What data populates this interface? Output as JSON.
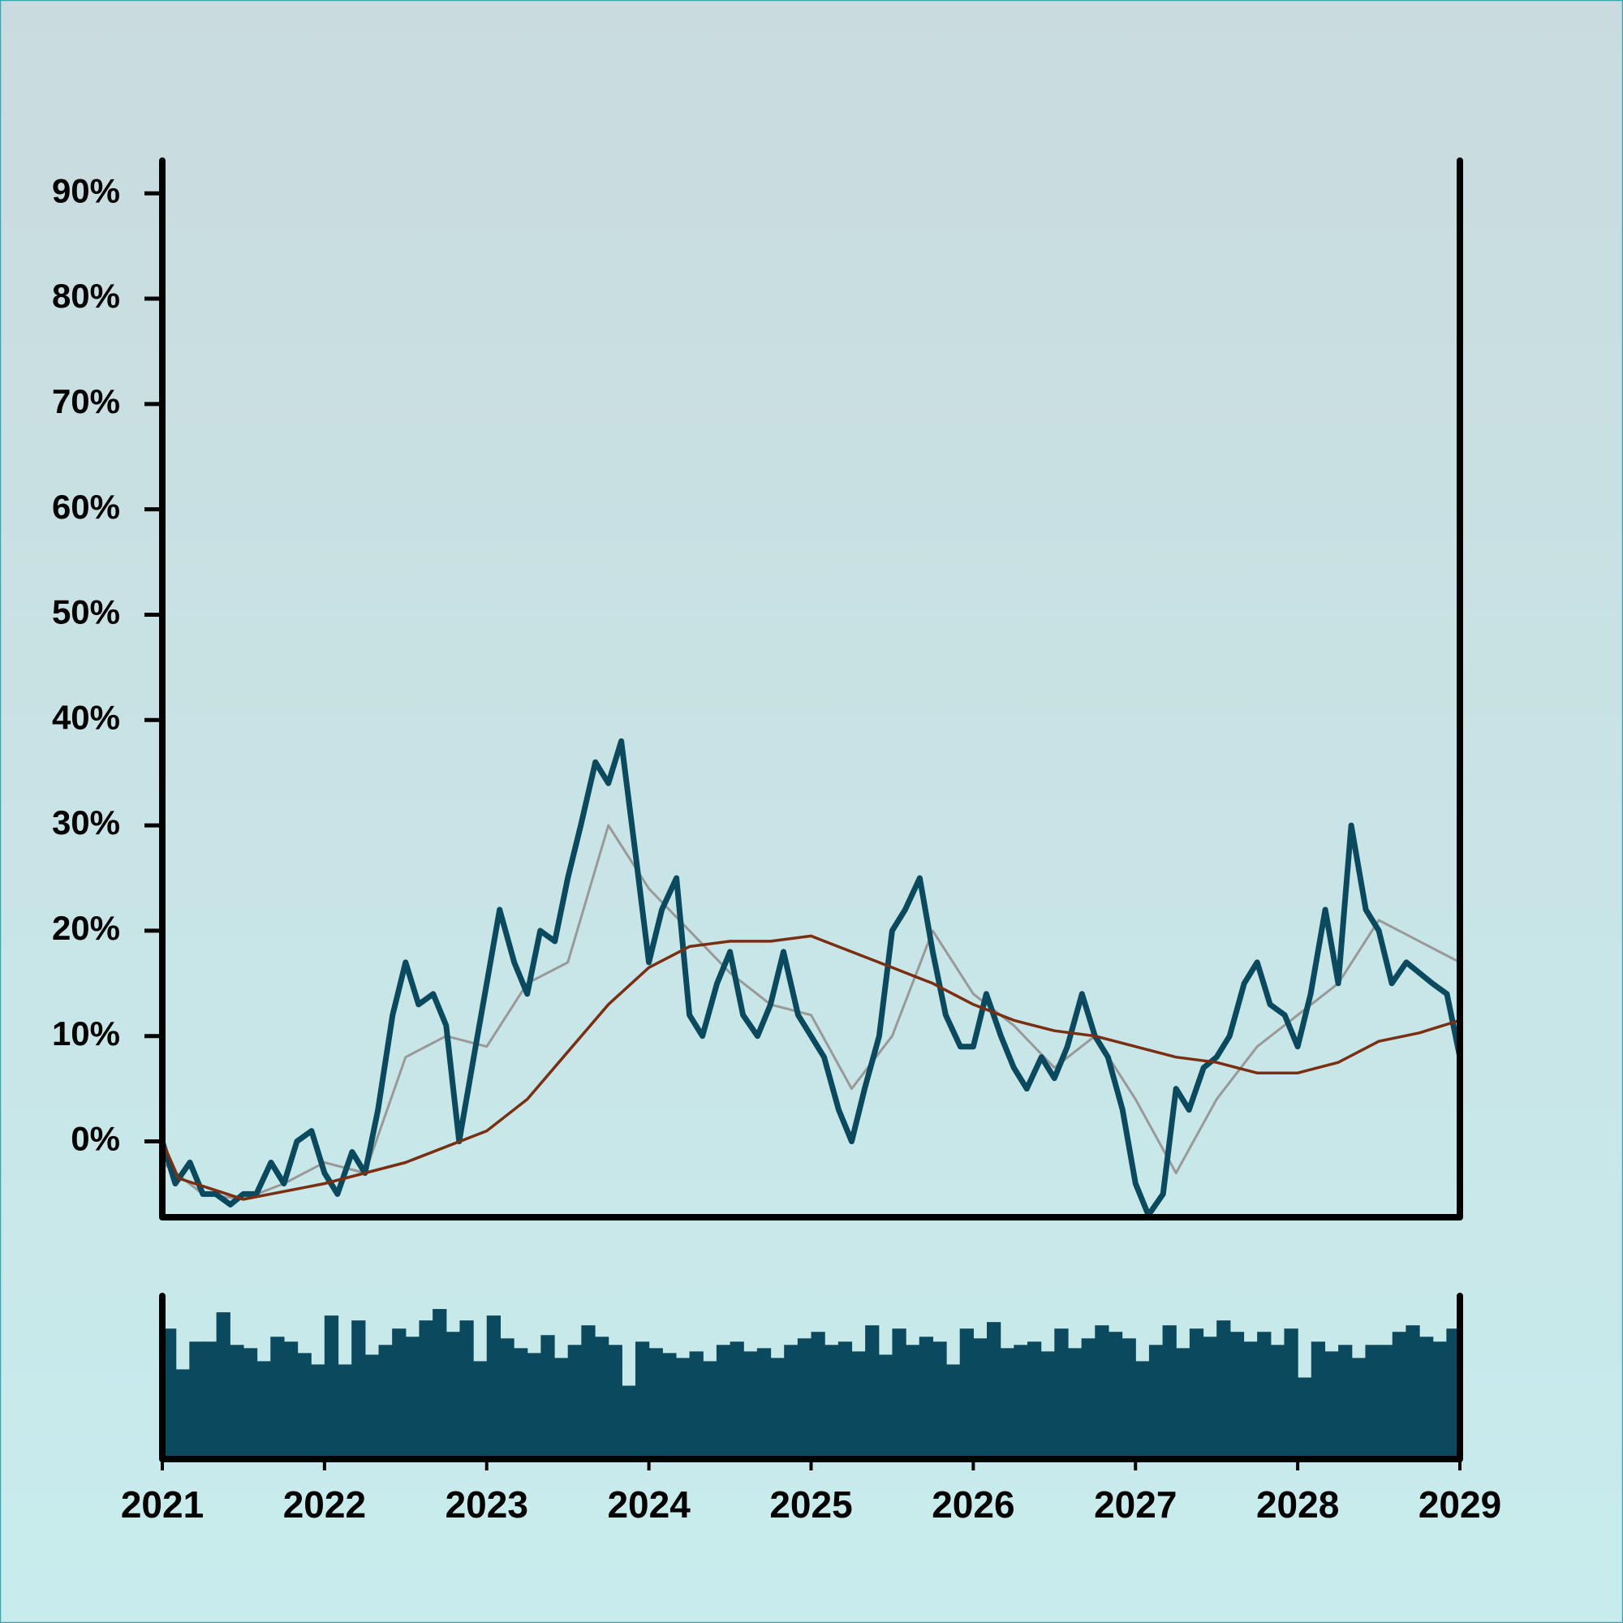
{
  "chart_data": {
    "type": "line",
    "xlim": [
      2021,
      2029
    ],
    "xticks": [
      2021,
      2022,
      2023,
      2024,
      2025,
      2026,
      2027,
      2028,
      2029
    ],
    "ylim": [
      -7.2,
      93.1
    ],
    "yticks": [
      {
        "value": 0,
        "label": "0%"
      },
      {
        "value": 10,
        "label": "10%"
      },
      {
        "value": 20,
        "label": "20%"
      },
      {
        "value": 30,
        "label": "30%"
      },
      {
        "value": 40,
        "label": "40%"
      },
      {
        "value": 50,
        "label": "50%"
      },
      {
        "value": 60,
        "label": "60%"
      },
      {
        "value": 70,
        "label": "70%"
      },
      {
        "value": 80,
        "label": "80%"
      },
      {
        "value": 90,
        "label": "90%"
      }
    ],
    "series": [
      {
        "color": "#999999",
        "x": [
          2021,
          2021.25,
          2021.5,
          2021.75,
          2022,
          2022.25,
          2022.5,
          2022.75,
          2023,
          2023.25,
          2023.5,
          2023.75,
          2024,
          2024.25,
          2024.5,
          2024.75,
          2025,
          2025.25,
          2025.5,
          2025.75,
          2026,
          2026.25,
          2026.5,
          2026.75,
          2027,
          2027.25,
          2027.5,
          2027.75,
          2028,
          2028.25,
          2028.5,
          2028.75,
          2029
        ],
        "values": [
          -2,
          -5,
          -5.5,
          -4,
          -2,
          -3,
          8,
          10,
          9,
          15,
          17,
          30,
          24,
          20,
          16,
          13,
          12,
          5,
          10,
          20,
          14,
          11,
          7,
          10,
          4,
          -3,
          4,
          9,
          12,
          15,
          21,
          19,
          17
        ]
      },
      {
        "color": "#0b4a5e",
        "x": [
          2021,
          2021.08,
          2021.17,
          2021.25,
          2021.33,
          2021.42,
          2021.5,
          2021.58,
          2021.67,
          2021.75,
          2021.83,
          2021.92,
          2022,
          2022.08,
          2022.17,
          2022.25,
          2022.33,
          2022.42,
          2022.5,
          2022.58,
          2022.67,
          2022.75,
          2022.83,
          2022.92,
          2023,
          2023.08,
          2023.17,
          2023.25,
          2023.33,
          2023.42,
          2023.5,
          2023.58,
          2023.67,
          2023.75,
          2023.83,
          2023.92,
          2024,
          2024.08,
          2024.17,
          2024.25,
          2024.33,
          2024.42,
          2024.5,
          2024.58,
          2024.67,
          2024.75,
          2024.83,
          2024.92,
          2025,
          2025.08,
          2025.17,
          2025.25,
          2025.33,
          2025.42,
          2025.5,
          2025.58,
          2025.67,
          2025.75,
          2025.83,
          2025.92,
          2026,
          2026.08,
          2026.17,
          2026.25,
          2026.33,
          2026.42,
          2026.5,
          2026.58,
          2026.67,
          2026.75,
          2026.83,
          2026.92,
          2027,
          2027.08,
          2027.17,
          2027.25,
          2027.33,
          2027.42,
          2027.5,
          2027.58,
          2027.67,
          2027.75,
          2027.83,
          2027.92,
          2028,
          2028.08,
          2028.17,
          2028.25,
          2028.33,
          2028.42,
          2028.5,
          2028.58,
          2028.67,
          2028.75,
          2028.83,
          2028.92,
          2029
        ],
        "values": [
          0,
          -4,
          -2,
          -5,
          -5,
          -6,
          -5,
          -5,
          -2,
          -4,
          0,
          1,
          -3,
          -5,
          -1,
          -3,
          3,
          12,
          17,
          13,
          14,
          11,
          0,
          8,
          15,
          22,
          17,
          14,
          20,
          19,
          25,
          30,
          36,
          34,
          38,
          27,
          17,
          22,
          25,
          12,
          10,
          15,
          18,
          12,
          10,
          13,
          18,
          12,
          10,
          8,
          3,
          0,
          5,
          10,
          20,
          22,
          25,
          18,
          12,
          9,
          9,
          14,
          10,
          7,
          5,
          8,
          6,
          9,
          14,
          10,
          8,
          3,
          -4,
          -7,
          -5,
          5,
          3,
          7,
          8,
          10,
          15,
          17,
          13,
          12,
          9,
          14,
          22,
          15,
          30,
          22,
          20,
          15,
          17,
          16,
          15,
          14,
          8
        ]
      },
      {
        "color": "#7a2e12",
        "x": [
          2021,
          2021.1,
          2021.5,
          2022,
          2022.5,
          2023,
          2023.25,
          2023.5,
          2023.75,
          2024,
          2024.25,
          2024.5,
          2024.75,
          2025,
          2025.25,
          2025.5,
          2025.75,
          2026,
          2026.25,
          2026.5,
          2026.75,
          2027,
          2027.25,
          2027.5,
          2027.75,
          2028,
          2028.25,
          2028.5,
          2028.75,
          2029
        ],
        "values": [
          0,
          -3.5,
          -5.5,
          -4,
          -2,
          1,
          4,
          8.5,
          13,
          16.5,
          18.5,
          19,
          19,
          19.5,
          18,
          16.5,
          15,
          13,
          11.5,
          10.5,
          10,
          9,
          8,
          7.5,
          6.5,
          6.5,
          7.5,
          9.5,
          10.3,
          11.5
        ]
      }
    ],
    "volume": {
      "type": "bar",
      "color": "#0b4a5e",
      "ylim": [
        0,
        100
      ],
      "values": [
        80,
        55,
        72,
        72,
        90,
        70,
        68,
        60,
        75,
        72,
        65,
        58,
        88,
        58,
        85,
        64,
        70,
        80,
        75,
        85,
        92,
        78,
        85,
        60,
        88,
        74,
        68,
        65,
        76,
        62,
        70,
        82,
        75,
        70,
        45,
        72,
        68,
        65,
        62,
        66,
        60,
        70,
        72,
        66,
        68,
        62,
        70,
        74,
        78,
        70,
        72,
        66,
        82,
        64,
        80,
        70,
        75,
        72,
        58,
        80,
        74,
        84,
        68,
        70,
        72,
        66,
        80,
        68,
        74,
        82,
        78,
        74,
        60,
        70,
        82,
        68,
        80,
        75,
        85,
        78,
        72,
        78,
        70,
        80,
        50,
        72,
        66,
        70,
        62,
        70,
        70,
        78,
        82,
        75,
        72,
        80
      ]
    }
  }
}
